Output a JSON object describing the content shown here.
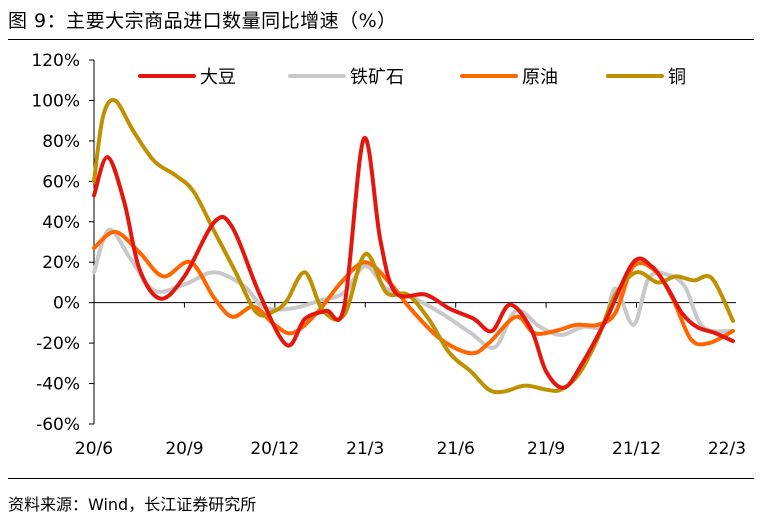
{
  "figure": {
    "title": "图 9：主要大宗商品进口数量同比增速（%）",
    "source": "资料来源：Wind，长江证券研究所"
  },
  "chart_data": {
    "type": "line",
    "title": "图 9：主要大宗商品进口数量同比增速（%）",
    "xlabel": "",
    "ylabel": "",
    "ylim": [
      -60,
      120
    ],
    "yticks": [
      120,
      100,
      80,
      60,
      40,
      20,
      0,
      -20,
      -40,
      -60
    ],
    "ytick_labels": [
      "120%",
      "100%",
      "80%",
      "60%",
      "40%",
      "20%",
      "0%",
      "-20%",
      "-40%",
      "-60%"
    ],
    "x_start_month": "2020-06",
    "xlim": [
      0,
      21.3
    ],
    "xticks": [
      0,
      3,
      6,
      9,
      12,
      15,
      18,
      21
    ],
    "xtick_labels": [
      "20/6",
      "20/9",
      "20/12",
      "21/3",
      "21/6",
      "21/9",
      "21/12",
      "22/3"
    ],
    "legend_position": "top",
    "grid": false,
    "series": [
      {
        "name": "大豆",
        "color": "#e3170d",
        "x": [
          0,
          0.45,
          1,
          1.5,
          2.2,
          3,
          4,
          4.6,
          5.5,
          6.4,
          7,
          7.7,
          8.3,
          8.95,
          9.5,
          10,
          11,
          11.8,
          12.6,
          13.2,
          13.8,
          14.5,
          15,
          15.6,
          16.2,
          17,
          17.9,
          18.5,
          19,
          19.5,
          20,
          20.6,
          21.2
        ],
        "values": [
          53,
          72,
          50,
          17,
          2,
          13,
          40,
          37,
          4,
          -21,
          -8,
          -4,
          -2,
          81,
          31,
          5,
          4,
          -3,
          -8,
          -14,
          -1,
          -13,
          -34,
          -42,
          -30,
          -8,
          20,
          18,
          8,
          -5,
          -12,
          -15,
          -19
        ]
      },
      {
        "name": "铁矿石",
        "color": "#c8c8c8",
        "x": [
          0,
          0.5,
          1.2,
          2,
          3,
          4,
          5,
          5.6,
          6.5,
          7.5,
          8.3,
          9,
          9.7,
          10.5,
          11.5,
          12.5,
          13.3,
          14,
          14.8,
          15.5,
          16.2,
          16.9,
          17.3,
          17.9,
          18.4,
          19,
          19.6,
          20.2,
          21.2
        ],
        "values": [
          15,
          36,
          22,
          6,
          9,
          15,
          8,
          -2,
          -3,
          1,
          5,
          18,
          7,
          3,
          -5,
          -15,
          -22,
          -4,
          -12,
          -16,
          -12,
          -11,
          7,
          -11,
          12,
          14,
          8,
          -12,
          -14
        ]
      },
      {
        "name": "原油",
        "color": "#ff6600",
        "x": [
          0,
          0.7,
          1.5,
          2.3,
          3.2,
          4,
          4.6,
          5.3,
          6,
          6.6,
          7.4,
          8.2,
          9,
          9.8,
          10.5,
          11.5,
          12.5,
          13.1,
          14,
          14.6,
          15.3,
          16,
          16.7,
          17.3,
          17.9,
          18.6,
          19.2,
          19.8,
          20.4,
          21.2
        ],
        "values": [
          27,
          35,
          25,
          13,
          20,
          2,
          -7,
          -2,
          -11,
          -15,
          -5,
          10,
          20,
          10,
          -3,
          -18,
          -25,
          -20,
          -7,
          -15,
          -14,
          -11,
          -11,
          -5,
          18,
          16,
          2,
          -18,
          -20,
          -14
        ]
      },
      {
        "name": "铜",
        "color": "#bf9000",
        "x": [
          0,
          0.3,
          0.7,
          1.3,
          2,
          2.7,
          3.3,
          4,
          4.7,
          5.4,
          6,
          6.4,
          7,
          7.6,
          8.3,
          9,
          9.7,
          10.4,
          11.1,
          11.8,
          12.5,
          13.1,
          13.6,
          14.3,
          15,
          15.5,
          16.1,
          16.7,
          17.3,
          18,
          18.7,
          19.3,
          19.9,
          20.5,
          21.2
        ],
        "values": [
          60,
          92,
          100,
          85,
          70,
          63,
          55,
          35,
          15,
          -5,
          -4,
          1,
          15,
          -4,
          -6,
          24,
          5,
          4,
          -8,
          -25,
          -34,
          -43,
          -44,
          -41,
          -43,
          -43,
          -35,
          -18,
          4,
          15,
          10,
          13,
          11,
          12,
          -9
        ]
      }
    ]
  }
}
